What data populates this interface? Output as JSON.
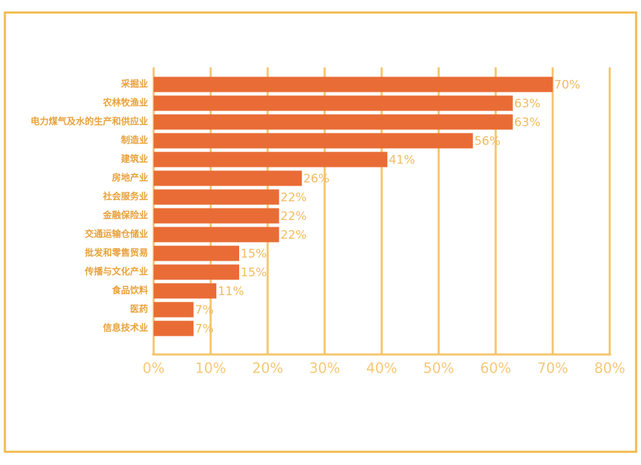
{
  "chart_data": {
    "type": "bar",
    "orientation": "horizontal",
    "categories": [
      "采掘业",
      "农林牧渔业",
      "电力煤气及水的生产和供应业",
      "制造业",
      "建筑业",
      "房地产业",
      "社会服务业",
      "金融保险业",
      "交通运输仓储业",
      "批发和零售贸易",
      "传播与文化产业",
      "食品饮料",
      "医药",
      "信息技术业"
    ],
    "values": [
      70,
      63,
      63,
      56,
      41,
      26,
      22,
      22,
      22,
      15,
      15,
      11,
      7,
      7
    ],
    "value_labels": [
      "70%",
      "63%",
      "63%",
      "56%",
      "41%",
      "26%",
      "22%",
      "22%",
      "22%",
      "15%",
      "15%",
      "11%",
      "7%",
      "7%"
    ],
    "color": "#e96c36",
    "xlim": [
      0,
      80
    ],
    "xticks": [
      {
        "value": 0,
        "label": "0%"
      },
      {
        "value": 10,
        "label": "10%"
      },
      {
        "value": 20,
        "label": "20%"
      },
      {
        "value": 30,
        "label": "30%"
      },
      {
        "value": 40,
        "label": "40%"
      },
      {
        "value": 50,
        "label": "50%"
      },
      {
        "value": 60,
        "label": "60%"
      },
      {
        "value": 70,
        "label": "70%"
      },
      {
        "value": 80,
        "label": "80%"
      }
    ],
    "grid": true
  }
}
